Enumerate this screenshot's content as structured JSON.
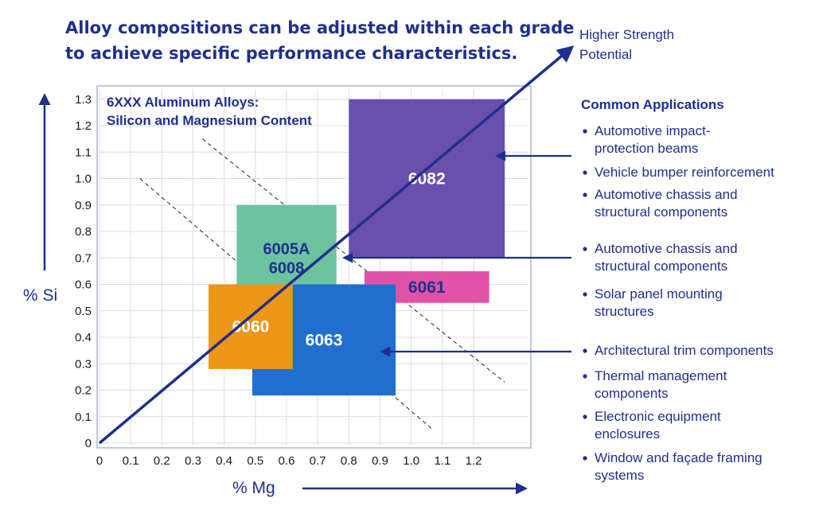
{
  "headline": {
    "line1": "Alloy compositions can be adjusted within each grade",
    "line2": "to achieve specific performance characteristics."
  },
  "strength_note": {
    "line1": "Higher Strength",
    "line2": "Potential"
  },
  "applications": {
    "title": "Common Applications",
    "items": [
      {
        "lines": [
          "Automotive impact-",
          "protection beams"
        ]
      },
      {
        "lines": [
          "Vehicle bumper reinforcement"
        ]
      },
      {
        "lines": [
          "Automotive chassis and",
          "structural components"
        ]
      },
      {
        "lines": [
          "Automotive chassis and",
          "structural components"
        ]
      },
      {
        "lines": [
          "Solar panel mounting",
          "structures"
        ]
      },
      {
        "lines": [
          "Architectural trim components"
        ]
      },
      {
        "lines": [
          "Thermal management",
          "components"
        ]
      },
      {
        "lines": [
          "Electronic equipment",
          "enclosures"
        ]
      },
      {
        "lines": [
          "Window and façade framing",
          "systems"
        ]
      }
    ]
  },
  "chart_data": {
    "type": "area",
    "title_line1": "6XXX Aluminum Alloys:",
    "title_line2": "Silicon and Magnesium Content",
    "xlabel": "% Mg",
    "ylabel": "% Si",
    "xlim": [
      0,
      1.4
    ],
    "ylim": [
      0,
      1.35
    ],
    "x_ticks": [
      "0",
      "0.1",
      "0.2",
      "0.3",
      "0.4",
      "0.5",
      "0.6",
      "0.7",
      "0.8",
      "0.9",
      "1.0",
      "1.1",
      "1.2"
    ],
    "y_ticks": [
      "0",
      "0.1",
      "0.2",
      "0.3",
      "0.4",
      "0.5",
      "0.6",
      "0.7",
      "0.8",
      "0.9",
      "1.0",
      "1.1",
      "1.2",
      "1.3"
    ],
    "grid": true,
    "regions": [
      {
        "label": "6082",
        "mg": [
          0.8,
          1.3
        ],
        "si": [
          0.7,
          1.3
        ],
        "color": "#6a4fac",
        "text_color": "#ffffff"
      },
      {
        "label": "6005A\n6008",
        "mg": [
          0.44,
          0.76
        ],
        "si": [
          0.5,
          0.9
        ],
        "color": "#6cc3a0",
        "text_color": "#1f2f8c"
      },
      {
        "label": "6061",
        "mg": [
          0.85,
          1.25
        ],
        "si": [
          0.53,
          0.65
        ],
        "color": "#e052a8",
        "text_color": "#1f2f8c"
      },
      {
        "label": "6063",
        "mg": [
          0.49,
          0.95
        ],
        "si": [
          0.18,
          0.6
        ],
        "color": "#1f6fcf",
        "text_color": "#ffffff"
      },
      {
        "label": "6060",
        "mg": [
          0.35,
          0.62
        ],
        "si": [
          0.28,
          0.6
        ],
        "color": "#ee9618",
        "text_color": "#ffffff"
      }
    ],
    "dashed_lines": [
      {
        "from": [
          0.33,
          1.15
        ],
        "to": [
          1.3,
          0.23
        ]
      },
      {
        "from": [
          0.13,
          1.0
        ],
        "to": [
          1.07,
          0.05
        ]
      }
    ],
    "strength_arrow": {
      "from": [
        0,
        0
      ],
      "to": [
        1.41,
        1.52
      ]
    },
    "pointer_arrows": [
      {
        "target": "6082",
        "point": [
          1.25,
          1.1
        ]
      },
      {
        "target": "6005A",
        "point": [
          0.76,
          0.72
        ]
      },
      {
        "target": "6063",
        "point": [
          0.88,
          0.35
        ]
      }
    ],
    "colors": {
      "axis": "#1f2f8c",
      "grid": "#d7dcea",
      "frame": "#9aa3c4"
    }
  }
}
